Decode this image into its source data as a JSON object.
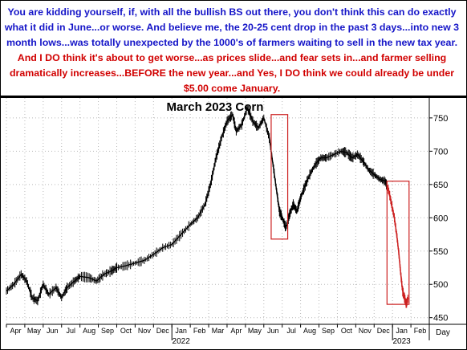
{
  "commentary": {
    "part_blue": "You are kidding yourself, if, with all the bullish BS out there, you don't think this can do exactly what it did in June...or worse. And believe me, the 20-25 cent drop in the past 3 days...into new 3 month lows...was totally unexpected by the 1000's of farmers waiting to sell in the new tax year.",
    "part_red": "And I DO think it's about to get worse...as prices slide...and fear sets in...and farmer selling dramatically increases...BEFORE the new year...and Yes, I DO think we could already be under $5.00 come January.",
    "colors": {
      "blue": "#1515c8",
      "red": "#d10000"
    }
  },
  "chart_data": {
    "type": "line",
    "title": "March 2023 Corn",
    "x_tick_labels": [
      "Apr",
      "May",
      "Jun",
      "Jul",
      "Aug",
      "Sep",
      "Oct",
      "Nov",
      "Dec",
      "Jan",
      "Feb",
      "Mar",
      "Apr",
      "May",
      "Jun",
      "Jul",
      "Aug",
      "Sep",
      "Oct",
      "Nov",
      "Dec",
      "Jan",
      "Feb"
    ],
    "x_year_labels": [
      "2022",
      "2023"
    ],
    "x_axis_end_label": "Day",
    "y_tick_labels": [
      "450",
      "500",
      "550",
      "600",
      "650",
      "700",
      "750"
    ],
    "ylim": [
      440,
      780
    ],
    "series_points": [
      [
        0,
        490
      ],
      [
        0.4,
        500
      ],
      [
        0.8,
        515
      ],
      [
        1.1,
        505
      ],
      [
        1.4,
        480
      ],
      [
        1.7,
        475
      ],
      [
        2.0,
        500
      ],
      [
        2.3,
        485
      ],
      [
        2.7,
        495
      ],
      [
        3.0,
        480
      ],
      [
        3.3,
        495
      ],
      [
        3.7,
        505
      ],
      [
        4.0,
        512
      ],
      [
        4.5,
        510
      ],
      [
        4.9,
        505
      ],
      [
        5.3,
        515
      ],
      [
        5.7,
        520
      ],
      [
        6.0,
        525
      ],
      [
        6.5,
        528
      ],
      [
        7.0,
        532
      ],
      [
        7.5,
        536
      ],
      [
        8.0,
        545
      ],
      [
        8.5,
        555
      ],
      [
        9.0,
        560
      ],
      [
        9.5,
        575
      ],
      [
        10.0,
        590
      ],
      [
        10.4,
        600
      ],
      [
        10.8,
        620
      ],
      [
        11.1,
        650
      ],
      [
        11.4,
        690
      ],
      [
        11.7,
        720
      ],
      [
        12.0,
        745
      ],
      [
        12.3,
        755
      ],
      [
        12.5,
        730
      ],
      [
        12.8,
        740
      ],
      [
        13.1,
        765
      ],
      [
        13.4,
        745
      ],
      [
        13.7,
        735
      ],
      [
        14.0,
        750
      ],
      [
        14.3,
        720
      ],
      [
        14.5,
        680
      ],
      [
        14.7,
        640
      ],
      [
        14.85,
        610
      ],
      [
        15.0,
        600
      ],
      [
        15.2,
        585
      ],
      [
        15.4,
        605
      ],
      [
        15.6,
        620
      ],
      [
        15.8,
        610
      ],
      [
        16.0,
        630
      ],
      [
        16.2,
        645
      ],
      [
        16.5,
        665
      ],
      [
        16.8,
        680
      ],
      [
        17.1,
        690
      ],
      [
        17.4,
        690
      ],
      [
        17.8,
        695
      ],
      [
        18.2,
        700
      ],
      [
        18.5,
        698
      ],
      [
        18.8,
        690
      ],
      [
        19.1,
        695
      ],
      [
        19.4,
        685
      ],
      [
        19.7,
        672
      ],
      [
        20.0,
        665
      ],
      [
        20.3,
        658
      ],
      [
        20.6,
        655
      ],
      [
        20.8,
        640
      ],
      [
        20.95,
        620
      ],
      [
        21.1,
        600
      ],
      [
        21.25,
        570
      ],
      [
        21.35,
        545
      ],
      [
        21.45,
        515
      ],
      [
        21.55,
        490
      ],
      [
        21.65,
        480
      ],
      [
        21.75,
        470
      ],
      [
        21.85,
        480
      ]
    ],
    "highlight_boxes": [
      {
        "x": [
          14.4,
          15.3
        ],
        "y": [
          568,
          755
        ]
      },
      {
        "x": [
          20.7,
          21.9
        ],
        "y": [
          470,
          655
        ]
      }
    ],
    "colors": {
      "line": "#000000",
      "highlight": "#cc2020"
    },
    "grid": true,
    "grid_style": "dotted"
  }
}
